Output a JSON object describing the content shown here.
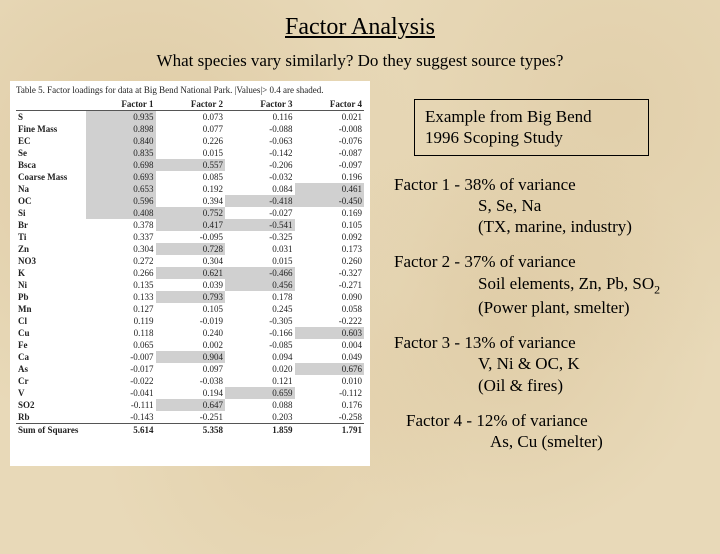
{
  "title": "Factor Analysis",
  "subtitle": "What species vary similarly?  Do they suggest source types?",
  "caption": "Table 5.  Factor loadings for data at Big Bend National Park.  |Values|> 0.4 are shaded.",
  "columns": [
    "",
    "Factor 1",
    "Factor 2",
    "Factor 3",
    "Factor 4"
  ],
  "rows": [
    {
      "n": "S",
      "v": [
        "0.935",
        "0.073",
        "0.116",
        "0.021"
      ],
      "s": [
        1,
        0,
        0,
        0
      ]
    },
    {
      "n": "Fine Mass",
      "v": [
        "0.898",
        "0.077",
        "-0.088",
        "-0.008"
      ],
      "s": [
        1,
        0,
        0,
        0
      ]
    },
    {
      "n": "EC",
      "v": [
        "0.840",
        "0.226",
        "-0.063",
        "-0.076"
      ],
      "s": [
        1,
        0,
        0,
        0
      ]
    },
    {
      "n": "Se",
      "v": [
        "0.835",
        "0.015",
        "-0.142",
        "-0.087"
      ],
      "s": [
        1,
        0,
        0,
        0
      ]
    },
    {
      "n": "Bsca",
      "v": [
        "0.698",
        "0.557",
        "-0.206",
        "-0.097"
      ],
      "s": [
        1,
        1,
        0,
        0
      ]
    },
    {
      "n": "Coarse Mass",
      "v": [
        "0.693",
        "0.085",
        "-0.032",
        "0.196"
      ],
      "s": [
        1,
        0,
        0,
        0
      ]
    },
    {
      "n": "Na",
      "v": [
        "0.653",
        "0.192",
        "0.084",
        "0.461"
      ],
      "s": [
        1,
        0,
        0,
        1
      ]
    },
    {
      "n": "OC",
      "v": [
        "0.596",
        "0.394",
        "-0.418",
        "-0.450"
      ],
      "s": [
        1,
        0,
        1,
        1
      ]
    },
    {
      "n": "Si",
      "v": [
        "0.408",
        "0.752",
        "-0.027",
        "0.169"
      ],
      "s": [
        1,
        1,
        0,
        0
      ]
    },
    {
      "n": "Br",
      "v": [
        "0.378",
        "0.417",
        "-0.541",
        "0.105"
      ],
      "s": [
        0,
        1,
        1,
        0
      ]
    },
    {
      "n": "Ti",
      "v": [
        "0.337",
        "-0.095",
        "-0.325",
        "0.092"
      ],
      "s": [
        0,
        0,
        0,
        0
      ]
    },
    {
      "n": "Zn",
      "v": [
        "0.304",
        "0.728",
        "0.031",
        "0.173"
      ],
      "s": [
        0,
        1,
        0,
        0
      ]
    },
    {
      "n": "NO3",
      "v": [
        "0.272",
        "0.304",
        "0.015",
        "0.260"
      ],
      "s": [
        0,
        0,
        0,
        0
      ]
    },
    {
      "n": "K",
      "v": [
        "0.266",
        "0.621",
        "-0.466",
        "-0.327"
      ],
      "s": [
        0,
        1,
        1,
        0
      ]
    },
    {
      "n": "Ni",
      "v": [
        "0.135",
        "0.039",
        "0.456",
        "-0.271"
      ],
      "s": [
        0,
        0,
        1,
        0
      ]
    },
    {
      "n": "Pb",
      "v": [
        "0.133",
        "0.793",
        "0.178",
        "0.090"
      ],
      "s": [
        0,
        1,
        0,
        0
      ]
    },
    {
      "n": "Mn",
      "v": [
        "0.127",
        "0.105",
        "0.245",
        "0.058"
      ],
      "s": [
        0,
        0,
        0,
        0
      ]
    },
    {
      "n": "Cl",
      "v": [
        "0.119",
        "-0.019",
        "-0.305",
        "-0.222"
      ],
      "s": [
        0,
        0,
        0,
        0
      ]
    },
    {
      "n": "Cu",
      "v": [
        "0.118",
        "0.240",
        "-0.166",
        "0.603"
      ],
      "s": [
        0,
        0,
        0,
        1
      ]
    },
    {
      "n": "Fe",
      "v": [
        "0.065",
        "0.002",
        "-0.085",
        "0.004"
      ],
      "s": [
        0,
        0,
        0,
        0
      ]
    },
    {
      "n": "Ca",
      "v": [
        "-0.007",
        "0.904",
        "0.094",
        "0.049"
      ],
      "s": [
        0,
        1,
        0,
        0
      ]
    },
    {
      "n": "As",
      "v": [
        "-0.017",
        "0.097",
        "0.020",
        "0.676"
      ],
      "s": [
        0,
        0,
        0,
        1
      ]
    },
    {
      "n": "Cr",
      "v": [
        "-0.022",
        "-0.038",
        "0.121",
        "0.010"
      ],
      "s": [
        0,
        0,
        0,
        0
      ]
    },
    {
      "n": "V",
      "v": [
        "-0.041",
        "0.194",
        "0.659",
        "-0.112"
      ],
      "s": [
        0,
        0,
        1,
        0
      ]
    },
    {
      "n": "SO2",
      "v": [
        "-0.111",
        "0.647",
        "0.088",
        "0.176"
      ],
      "s": [
        0,
        1,
        0,
        0
      ]
    },
    {
      "n": "Rb",
      "v": [
        "-0.143",
        "-0.251",
        "0.203",
        "-0.258"
      ],
      "s": [
        0,
        0,
        0,
        0
      ]
    }
  ],
  "sum_row": {
    "n": "Sum of Squares",
    "v": [
      "5.614",
      "5.358",
      "1.859",
      "1.791"
    ]
  },
  "example_l1": "Example from Big Bend",
  "example_l2": "1996 Scoping Study",
  "f1_a": "Factor 1 - 38% of variance",
  "f1_b": "S, Se, Na",
  "f1_c": "(TX, marine, industry)",
  "f2_a": "Factor 2 - 37% of variance",
  "f2_b": "Soil elements, Zn, Pb, SO",
  "f2_b2": "2",
  "f2_c": "(Power plant, smelter)",
  "f3_a": "Factor 3 - 13% of variance",
  "f3_b": "V, Ni  &  OC, K",
  "f3_c": "(Oil & fires)",
  "f4_a": "Factor 4 - 12% of variance",
  "f4_b": "As, Cu (smelter)"
}
